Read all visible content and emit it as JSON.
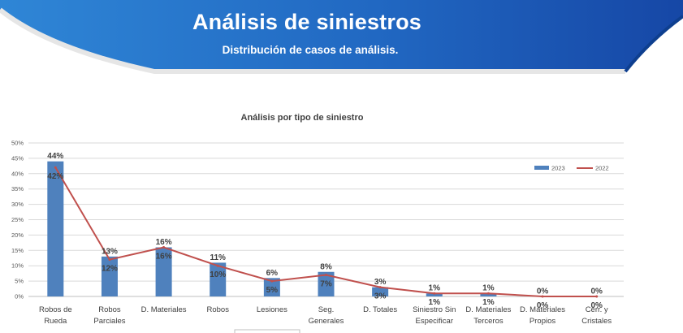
{
  "header": {
    "title": "Análisis de siniestros",
    "subtitle": "Distribución de casos de análisis.",
    "colors": {
      "gradient_start": "#2a7fd0",
      "gradient_end": "#1a56b0",
      "accent": "#0e3f8f"
    }
  },
  "chart_data": {
    "type": "bar",
    "title": "Análisis por tipo de siniestro",
    "categories": [
      [
        "Robos de",
        "Rueda"
      ],
      [
        "Robos",
        "Parciales"
      ],
      [
        "D. Materiales"
      ],
      [
        "Robos"
      ],
      [
        "Lesiones"
      ],
      [
        "Seg.",
        "Generales"
      ],
      [
        "D. Totales"
      ],
      [
        "Siniestro Sin",
        "Especificar"
      ],
      [
        "D. Materiales",
        "Terceros"
      ],
      [
        "D. Materiales",
        "Propios"
      ],
      [
        "Cerr. y",
        "Cristales"
      ]
    ],
    "series": [
      {
        "name": "2023",
        "kind": "bar",
        "color": "#4f81bd",
        "values": [
          44,
          13,
          16,
          11,
          6,
          8,
          3,
          1,
          1,
          0,
          0
        ],
        "labels": [
          "44%",
          "13%",
          "16%",
          "11%",
          "6%",
          "8%",
          "3%",
          "1%",
          "1%",
          "0%",
          "0%"
        ]
      },
      {
        "name": "2022",
        "kind": "line",
        "color": "#c0504d",
        "values": [
          42,
          12,
          16,
          10,
          5,
          7,
          3,
          1,
          1,
          0,
          0
        ],
        "labels": [
          "42%",
          "12%",
          "16%",
          "10%",
          "5%",
          "7%",
          "3%",
          "1%",
          "1%",
          "0%",
          "0%"
        ]
      }
    ],
    "yticks": [
      "0%",
      "5%",
      "10%",
      "15%",
      "20%",
      "25%",
      "30%",
      "35%",
      "40%",
      "45%",
      "50%"
    ],
    "ylim": [
      0,
      50
    ],
    "grid": true,
    "legend_position": "top-right"
  }
}
